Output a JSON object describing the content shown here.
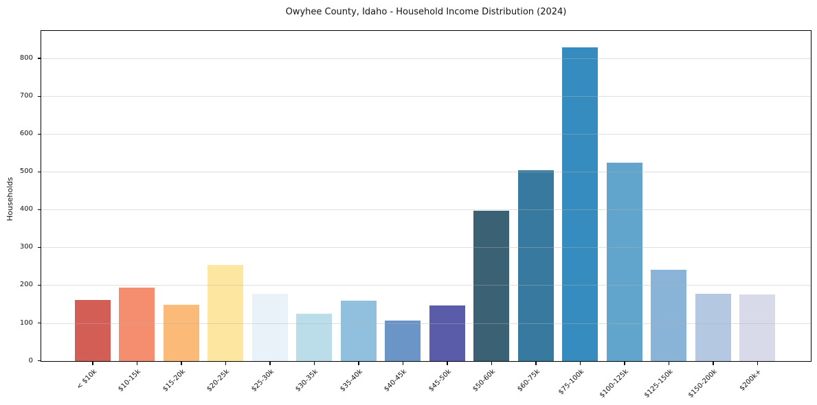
{
  "title": "Owyhee County, Idaho - Household Income Distribution (2024)",
  "chart_data": {
    "type": "bar",
    "title": "Owyhee County, Idaho - Household Income Distribution (2024)",
    "xlabel": "",
    "ylabel": "Households",
    "categories": [
      "< $10k",
      "$10-15k",
      "$15-20k",
      "$20-25k",
      "$25-30k",
      "$30-35k",
      "$35-40k",
      "$40-45k",
      "$45-50k",
      "$50-60k",
      "$60-75k",
      "$75-100k",
      "$100-125k",
      "$125-150k",
      "$150-200k",
      "$200k+"
    ],
    "values": [
      161,
      195,
      149,
      255,
      178,
      126,
      160,
      107,
      148,
      398,
      506,
      830,
      526,
      241,
      178,
      176
    ],
    "bar_colors": [
      "#d35e56",
      "#f58e6e",
      "#fcba79",
      "#fde7a0",
      "#e8f2f8",
      "#badde9",
      "#90c0dd",
      "#6b94c7",
      "#5a5ba9",
      "#3a6174",
      "#387a9f",
      "#378cbf",
      "#61a5cc",
      "#8ab3d8",
      "#b4c8e1",
      "#d8daea"
    ],
    "ylim": [
      0,
      872
    ],
    "y_ticks": [
      0,
      100,
      200,
      300,
      400,
      500,
      600,
      700,
      800
    ],
    "grid": "horizontal",
    "legend": "none",
    "background_color": "#ffffff",
    "axis_color": "#000000"
  }
}
